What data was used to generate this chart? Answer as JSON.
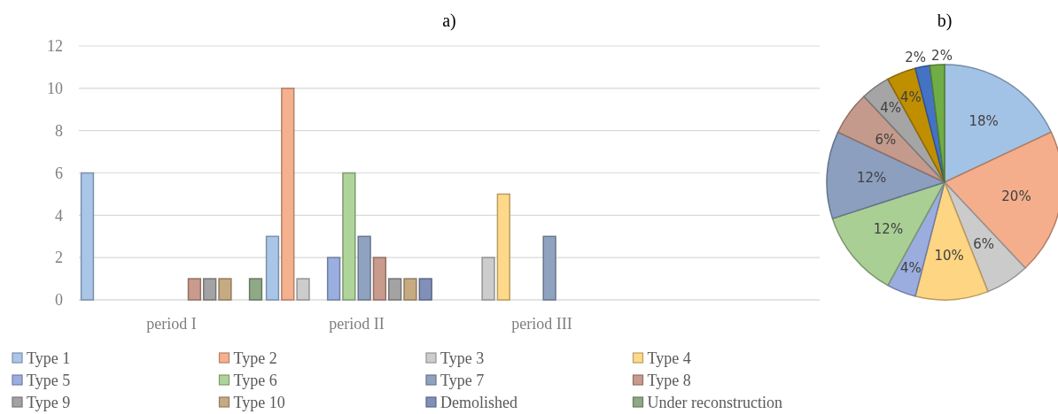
{
  "chart_data": [
    {
      "type": "bar",
      "title": "a)",
      "categories": [
        "period I",
        "period II",
        "period III",
        null
      ],
      "ylim": [
        0,
        12
      ],
      "yticks": [
        0,
        2,
        4,
        6,
        8,
        10,
        12
      ],
      "grid": "y",
      "legend": "bottom",
      "series": [
        {
          "name": "Type 1",
          "color": "#a9c6e8",
          "values": [
            6,
            3,
            0,
            0
          ]
        },
        {
          "name": "Type 2",
          "color": "#f5b08e",
          "values": [
            0,
            10,
            0,
            0
          ]
        },
        {
          "name": "Type 3",
          "color": "#cccccc",
          "values": [
            0,
            1,
            2,
            0
          ]
        },
        {
          "name": "Type 4",
          "color": "#ffd98a",
          "values": [
            0,
            0,
            5,
            0
          ]
        },
        {
          "name": "Type 5",
          "color": "#9aaee0",
          "values": [
            0,
            2,
            0,
            0
          ]
        },
        {
          "name": "Type 6",
          "color": "#aed49a",
          "values": [
            0,
            6,
            0,
            0
          ]
        },
        {
          "name": "Type 7",
          "color": "#8fa2c0",
          "values": [
            0,
            3,
            3,
            0
          ]
        },
        {
          "name": "Type 8",
          "color": "#c99b8c",
          "values": [
            1,
            2,
            0,
            0
          ]
        },
        {
          "name": "Type 9",
          "color": "#a3a3a3",
          "values": [
            1,
            1,
            0,
            0
          ]
        },
        {
          "name": "Type 10",
          "color": "#c6ab82",
          "values": [
            1,
            1,
            0,
            0
          ]
        },
        {
          "name": "Demolished",
          "color": "#8090b8",
          "values": [
            0,
            1,
            0,
            0
          ]
        },
        {
          "name": "Under reconstruction",
          "color": "#8fa886",
          "values": [
            1,
            0,
            0,
            0
          ]
        }
      ]
    },
    {
      "type": "pie",
      "title": "b)",
      "categories": [
        null,
        null,
        null,
        null,
        null,
        null,
        null,
        null,
        null,
        null,
        null,
        null
      ],
      "values": [
        18,
        20,
        6,
        10,
        4,
        12,
        12,
        6,
        4,
        4,
        2,
        2
      ],
      "value_labels": [
        "18%",
        "20%",
        "6%",
        "10%",
        "4%",
        "12%",
        "12%",
        "6%",
        "4%",
        "4%",
        "2%",
        "2%"
      ],
      "colors": [
        "#a3c3e6",
        "#f5ae8c",
        "#cbcbcb",
        "#fed583",
        "#9badde",
        "#aacf95",
        "#8c9fbf",
        "#c49a8d",
        "#a5a5a5",
        "#bf8f00",
        "#4472c4",
        "#70ad47"
      ]
    }
  ]
}
